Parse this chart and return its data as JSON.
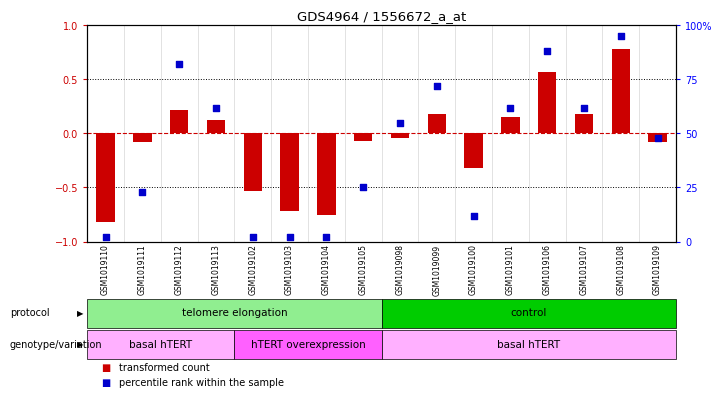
{
  "title": "GDS4964 / 1556672_a_at",
  "samples": [
    "GSM1019110",
    "GSM1019111",
    "GSM1019112",
    "GSM1019113",
    "GSM1019102",
    "GSM1019103",
    "GSM1019104",
    "GSM1019105",
    "GSM1019098",
    "GSM1019099",
    "GSM1019100",
    "GSM1019101",
    "GSM1019106",
    "GSM1019107",
    "GSM1019108",
    "GSM1019109"
  ],
  "transformed_count": [
    -0.82,
    -0.08,
    0.22,
    0.12,
    -0.53,
    -0.72,
    -0.75,
    -0.07,
    -0.04,
    0.18,
    -0.32,
    0.15,
    0.57,
    0.18,
    0.78,
    -0.08
  ],
  "percentile_rank": [
    2,
    23,
    82,
    62,
    2,
    2,
    2,
    25,
    55,
    72,
    12,
    62,
    88,
    62,
    95,
    48
  ],
  "protocol_groups": [
    {
      "label": "telomere elongation",
      "start": 0,
      "end": 8,
      "color": "#90EE90"
    },
    {
      "label": "control",
      "start": 8,
      "end": 16,
      "color": "#00CC00"
    }
  ],
  "genotype_groups": [
    {
      "label": "basal hTERT",
      "start": 0,
      "end": 4,
      "color": "#FFB0FF"
    },
    {
      "label": "hTERT overexpression",
      "start": 4,
      "end": 8,
      "color": "#FF60FF"
    },
    {
      "label": "basal hTERT",
      "start": 8,
      "end": 16,
      "color": "#FFB0FF"
    }
  ],
  "bar_color": "#CC0000",
  "dot_color": "#0000CC",
  "ylim": [
    -1,
    1
  ],
  "y2lim": [
    0,
    100
  ],
  "y_ticks": [
    -1,
    -0.5,
    0,
    0.5,
    1
  ],
  "y2_ticks": [
    0,
    25,
    50,
    75,
    100
  ],
  "y2_tick_labels": [
    "0",
    "25",
    "50",
    "75",
    "100%"
  ],
  "dotted_lines": [
    -0.5,
    0.5
  ],
  "zero_line": 0,
  "legend_red": "transformed count",
  "legend_blue": "percentile rank within the sample",
  "protocol_label": "protocol",
  "genotype_label": "genotype/variation"
}
